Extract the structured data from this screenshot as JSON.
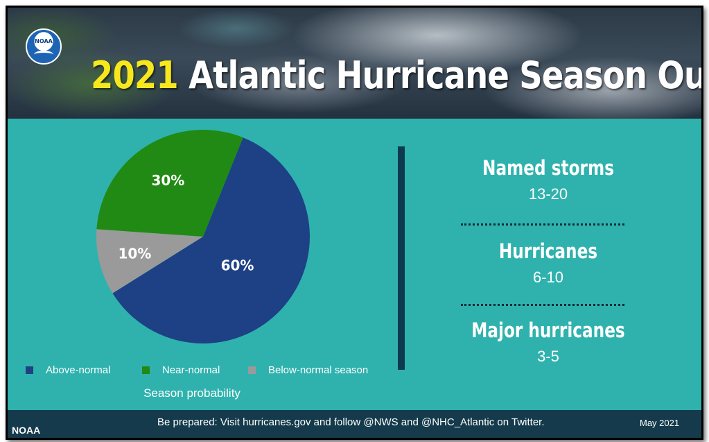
{
  "header": {
    "logo_text": "NOAA",
    "title_year": "2021",
    "title_rest": "Atlantic Hurricane Season Outlook"
  },
  "chart_data": {
    "type": "pie",
    "slices": [
      {
        "label": "Above-normal",
        "value": 60,
        "display": "60%",
        "color": "#1d4184"
      },
      {
        "label": "Near-normal",
        "value": 30,
        "display": "30%",
        "color": "#218a14"
      },
      {
        "label": "Below-normal season",
        "value": 10,
        "display": "10%",
        "color": "#9a9a9a"
      }
    ],
    "xlabel": "Season probability",
    "legend_position": "bottom"
  },
  "stats": [
    {
      "label": "Named storms",
      "value": "13-20"
    },
    {
      "label": "Hurricanes",
      "value": "6-10"
    },
    {
      "label": "Major hurricanes",
      "value": "3-5"
    }
  ],
  "footer": {
    "org": "NOAA",
    "message": "Be prepared: Visit hurricanes.gov and follow @NWS and @NHC_Atlantic on Twitter.",
    "date": "May 2021"
  },
  "colors": {
    "panel": "#2fb2ad",
    "footer": "#143a4b",
    "title_year": "#f7e81d",
    "divider": "#0e3a4f"
  }
}
